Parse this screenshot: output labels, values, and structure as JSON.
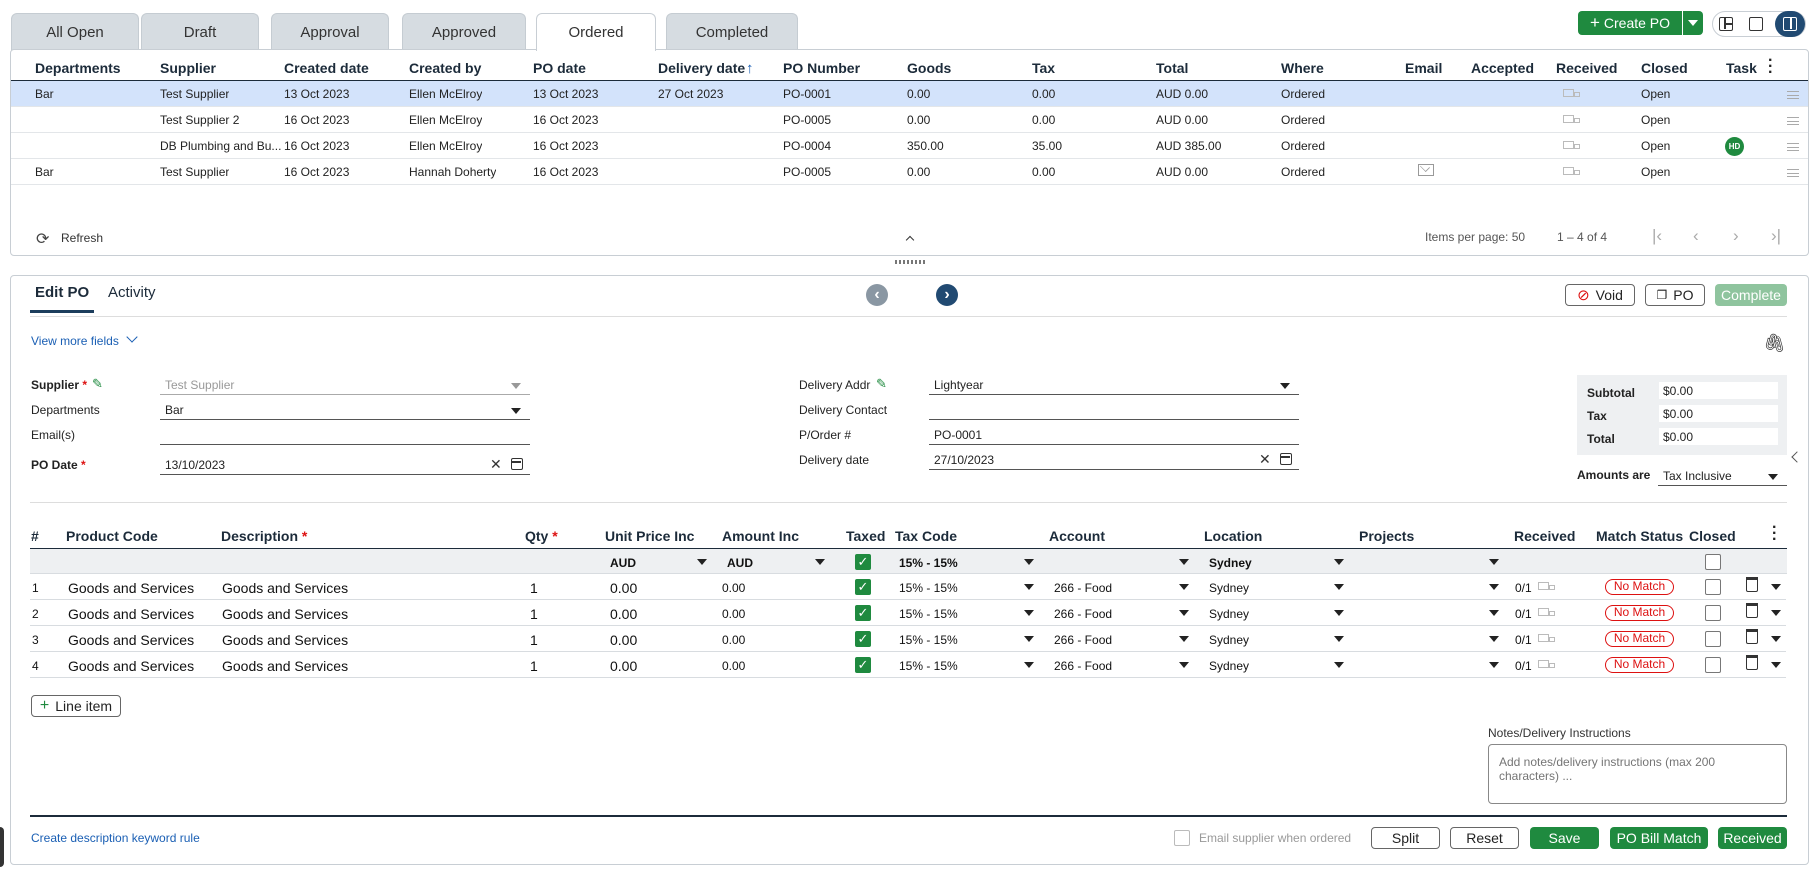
{
  "tabs": [
    "All Open",
    "Draft",
    "Approval",
    "Approved",
    "Ordered",
    "Completed"
  ],
  "active_tab": "Ordered",
  "toolbar": {
    "create_po": "Create PO"
  },
  "grid": {
    "columns": [
      "Departments",
      "Supplier",
      "Created date",
      "Created by",
      "PO date",
      "Delivery date",
      "PO Number",
      "Goods",
      "Tax",
      "Total",
      "Where",
      "Email",
      "Accepted",
      "Received",
      "Closed",
      "Task"
    ],
    "rows": [
      {
        "dept": "Bar",
        "supplier": "Test Supplier",
        "created": "13 Oct 2023",
        "by": "Ellen McElroy",
        "podate": "13 Oct 2023",
        "delivery": "27 Oct 2023",
        "ponum": "PO-0001",
        "goods": "0.00",
        "tax": "0.00",
        "total": "AUD 0.00",
        "where": "Ordered",
        "closed": "Open",
        "task": ""
      },
      {
        "dept": "",
        "supplier": "Test Supplier 2",
        "created": "16 Oct 2023",
        "by": "Ellen McElroy",
        "podate": "16 Oct 2023",
        "delivery": "",
        "ponum": "PO-0005",
        "goods": "0.00",
        "tax": "0.00",
        "total": "AUD 0.00",
        "where": "Ordered",
        "closed": "Open",
        "task": ""
      },
      {
        "dept": "",
        "supplier": "DB Plumbing and Bu...",
        "created": "16 Oct 2023",
        "by": "Ellen McElroy",
        "podate": "16 Oct 2023",
        "delivery": "",
        "ponum": "PO-0004",
        "goods": "350.00",
        "tax": "35.00",
        "total": "AUD 385.00",
        "where": "Ordered",
        "closed": "Open",
        "task": "HD"
      },
      {
        "dept": "Bar",
        "supplier": "Test Supplier",
        "created": "16 Oct 2023",
        "by": "Hannah Doherty",
        "podate": "16 Oct 2023",
        "delivery": "",
        "ponum": "PO-0005",
        "goods": "0.00",
        "tax": "0.00",
        "total": "AUD 0.00",
        "where": "Ordered",
        "closed": "Open",
        "task": ""
      }
    ],
    "refresh": "Refresh",
    "items_per_page": "Items per page: 50",
    "range": "1 – 4 of 4"
  },
  "editor": {
    "tabs": [
      "Edit PO",
      "Activity"
    ],
    "void": "Void",
    "po": "PO",
    "complete": "Complete",
    "view_more": "View more fields",
    "supplier_label": "Supplier",
    "supplier_value": "Test Supplier",
    "departments_label": "Departments",
    "departments_value": "Bar",
    "emails_label": "Email(s)",
    "podate_label": "PO Date",
    "podate_value": "13/10/2023",
    "delivery_addr_label": "Delivery Addr",
    "delivery_addr_value": "Lightyear",
    "delivery_contact_label": "Delivery Contact",
    "porder_label": "P/Order #",
    "porder_value": "PO-0001",
    "delivery_date_label": "Delivery date",
    "delivery_date_value": "27/10/2023",
    "subtotal_label": "Subtotal",
    "subtotal": "$0.00",
    "tax_label": "Tax",
    "tax": "$0.00",
    "total_label": "Total",
    "total": "$0.00",
    "amounts_label": "Amounts are",
    "amounts_value": "Tax Inclusive"
  },
  "lines": {
    "columns": [
      "#",
      "Product Code",
      "Description",
      "Qty",
      "Unit Price Inc",
      "Amount Inc",
      "Taxed",
      "Tax Code",
      "Account",
      "Location",
      "Projects",
      "Received",
      "Match Status",
      "Closed"
    ],
    "defaults": {
      "currency1": "AUD",
      "currency2": "AUD",
      "taxcode": "15% - 15%",
      "location": "Sydney"
    },
    "rows": [
      {
        "n": "1",
        "code": "Goods and Services",
        "desc": "Goods and Services",
        "qty": "1",
        "unit": "0.00",
        "amount": "0.00",
        "taxcode": "15% - 15%",
        "account": "266 - Food",
        "location": "Sydney",
        "received": "0/1",
        "match": "No Match"
      },
      {
        "n": "2",
        "code": "Goods and Services",
        "desc": "Goods and Services",
        "qty": "1",
        "unit": "0.00",
        "amount": "0.00",
        "taxcode": "15% - 15%",
        "account": "266 - Food",
        "location": "Sydney",
        "received": "0/1",
        "match": "No Match"
      },
      {
        "n": "3",
        "code": "Goods and Services",
        "desc": "Goods and Services",
        "qty": "1",
        "unit": "0.00",
        "amount": "0.00",
        "taxcode": "15% - 15%",
        "account": "266 - Food",
        "location": "Sydney",
        "received": "0/1",
        "match": "No Match"
      },
      {
        "n": "4",
        "code": "Goods and Services",
        "desc": "Goods and Services",
        "qty": "1",
        "unit": "0.00",
        "amount": "0.00",
        "taxcode": "15% - 15%",
        "account": "266 - Food",
        "location": "Sydney",
        "received": "0/1",
        "match": "No Match"
      }
    ],
    "add_line": "Line item"
  },
  "notes": {
    "label": "Notes/Delivery Instructions",
    "placeholder": "Add notes/delivery instructions (max 200 characters) ..."
  },
  "footer": {
    "keyword_rule": "Create description keyword rule",
    "email_supplier": "Email supplier when ordered",
    "split": "Split",
    "reset": "Reset",
    "save": "Save",
    "bill_match": "PO Bill Match",
    "received": "Received"
  },
  "colors": {
    "green": "#1f8a3f",
    "blue_link": "#1a5fb4",
    "selected_row": "#d3e3fb",
    "no_match": "#d11111"
  }
}
